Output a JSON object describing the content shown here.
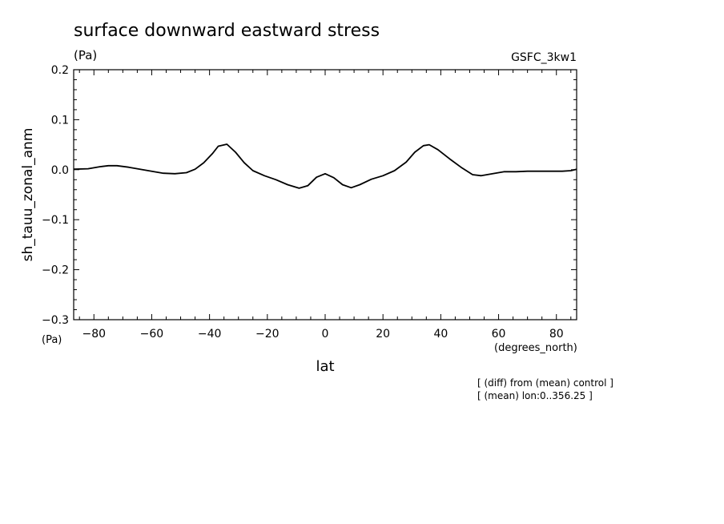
{
  "chart_data": {
    "type": "line",
    "title": "surface downward eastward stress",
    "units_label": "(Pa)",
    "model_label": "GSFC_3kw1",
    "ylabel": "sh_tauu_zonal_anm",
    "y_units": "(Pa)",
    "xlabel": "lat",
    "x_units": "(degrees_north)",
    "footnotes": [
      "[ (diff) from (mean) control ]",
      "[ (mean) lon:0..356.25 ]"
    ],
    "xlim": [
      -87,
      87
    ],
    "ylim": [
      -0.3,
      0.2
    ],
    "x_ticks": [
      -80,
      -60,
      -40,
      -20,
      0,
      20,
      40,
      60,
      80
    ],
    "x_tick_labels": [
      "−80",
      "−60",
      "−40",
      "−20",
      "0",
      "20",
      "40",
      "60",
      "80"
    ],
    "y_ticks": [
      -0.3,
      -0.2,
      -0.1,
      0.0,
      0.1,
      0.2
    ],
    "y_tick_labels": [
      "−0.3",
      "−0.2",
      "−0.1",
      "0.0",
      "0.1",
      "0.2"
    ],
    "grid": false,
    "series": [
      {
        "x": [
          -87,
          -82,
          -78,
          -75,
          -72,
          -68,
          -64,
          -60,
          -56,
          -52,
          -48,
          -45,
          -42,
          -39,
          -37,
          -34,
          -31,
          -28,
          -25,
          -21,
          -17,
          -13,
          -9,
          -6,
          -3,
          0,
          3,
          6,
          9,
          12,
          16,
          20,
          24,
          28,
          31,
          34,
          36,
          39,
          43,
          47,
          51,
          54,
          58,
          62,
          66,
          70,
          74,
          78,
          82,
          85,
          87
        ],
        "y": [
          0.001,
          0.002,
          0.006,
          0.008,
          0.008,
          0.005,
          0.001,
          -0.003,
          -0.007,
          -0.008,
          -0.006,
          0.001,
          0.014,
          0.032,
          0.047,
          0.051,
          0.035,
          0.014,
          -0.002,
          -0.012,
          -0.02,
          -0.03,
          -0.037,
          -0.032,
          -0.015,
          -0.008,
          -0.016,
          -0.03,
          -0.036,
          -0.03,
          -0.019,
          -0.012,
          -0.002,
          0.015,
          0.035,
          0.048,
          0.05,
          0.04,
          0.022,
          0.005,
          -0.01,
          -0.012,
          -0.008,
          -0.004,
          -0.004,
          -0.003,
          -0.003,
          -0.003,
          -0.003,
          -0.002,
          0.001
        ]
      }
    ]
  }
}
